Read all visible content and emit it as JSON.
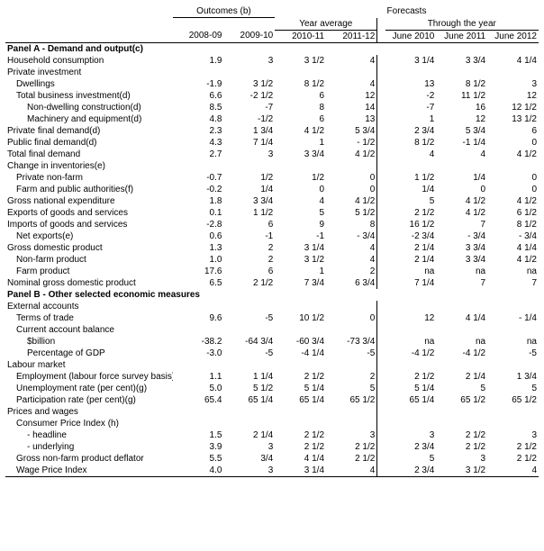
{
  "headers": {
    "outcomes": "Outcomes (b)",
    "forecasts": "Forecasts",
    "year_average": "Year average",
    "through_year": "Through the year",
    "c1": "2008-09",
    "c2": "2009-10",
    "c3": "2010-11",
    "c4": "2011-12",
    "c5": "June 2010",
    "c6": "June 2011",
    "c7": "June 2012"
  },
  "panelA_title": "Panel A - Demand and output(c)",
  "panelB_title": "Panel B - Other selected economic measures",
  "rows": {
    "household_consumption": {
      "l": "Household consumption",
      "v": [
        "1.9",
        "3",
        "3 1/2",
        "4",
        "3 1/4",
        "3 3/4",
        "4 1/4"
      ]
    },
    "private_investment": {
      "l": "Private investment"
    },
    "dwellings": {
      "l": "Dwellings",
      "v": [
        "-1.9",
        "3 1/2",
        "8 1/2",
        "4",
        "13",
        "8 1/2",
        "3"
      ]
    },
    "total_business_investment": {
      "l": "Total business investment(d)",
      "v": [
        "6.6",
        "-2 1/2",
        "6",
        "12",
        "-2",
        "11 1/2",
        "12"
      ]
    },
    "non_dwelling_construction": {
      "l": "Non-dwelling construction(d)",
      "v": [
        "8.5",
        "-7",
        "8",
        "14",
        "-7",
        "16",
        "12 1/2"
      ]
    },
    "machinery_equipment": {
      "l": "Machinery and equipment(d)",
      "v": [
        "4.8",
        "-1/2",
        "6",
        "13",
        "1",
        "12",
        "13 1/2"
      ]
    },
    "private_final_demand": {
      "l": "Private final demand(d)",
      "v": [
        "2.3",
        "1 3/4",
        "4 1/2",
        "5 3/4",
        "2 3/4",
        "5 3/4",
        "6"
      ]
    },
    "public_final_demand": {
      "l": "Public final demand(d)",
      "v": [
        "4.3",
        "7 1/4",
        "1",
        "- 1/2",
        "8 1/2",
        "-1 1/4",
        "0"
      ]
    },
    "total_final_demand": {
      "l": "Total final demand",
      "v": [
        "2.7",
        "3",
        "3 3/4",
        "4 1/2",
        "4",
        "4",
        "4 1/2"
      ]
    },
    "change_inventories": {
      "l": "Change in inventories(e)"
    },
    "private_non_farm": {
      "l": "Private non-farm",
      "v": [
        "-0.7",
        "1/2",
        "1/2",
        "0",
        "1 1/2",
        "1/4",
        "0"
      ]
    },
    "farm_public_auth": {
      "l": "Farm and public authorities(f)",
      "v": [
        "-0.2",
        "1/4",
        "0",
        "0",
        "1/4",
        "0",
        "0"
      ]
    },
    "gross_national_expenditure": {
      "l": "Gross national expenditure",
      "v": [
        "1.8",
        "3 3/4",
        "4",
        "4 1/2",
        "5",
        "4 1/2",
        "4 1/2"
      ]
    },
    "exports_gs": {
      "l": "Exports of goods and services",
      "v": [
        "0.1",
        "1 1/2",
        "5",
        "5 1/2",
        "2 1/2",
        "4 1/2",
        "6 1/2"
      ]
    },
    "imports_gs": {
      "l": "Imports of goods and services",
      "v": [
        "-2.8",
        "6",
        "9",
        "8",
        "16 1/2",
        "7",
        "8 1/2"
      ]
    },
    "net_exports": {
      "l": "Net exports(e)",
      "v": [
        "0.6",
        "-1",
        "-1",
        "- 3/4",
        "-2 3/4",
        "- 3/4",
        "- 3/4"
      ]
    },
    "gdp": {
      "l": "Gross domestic product",
      "v": [
        "1.3",
        "2",
        "3 1/4",
        "4",
        "2 1/4",
        "3 3/4",
        "4 1/4"
      ]
    },
    "non_farm_product": {
      "l": "Non-farm product",
      "v": [
        "1.0",
        "2",
        "3 1/2",
        "4",
        "2 1/4",
        "3 3/4",
        "4 1/2"
      ]
    },
    "farm_product": {
      "l": "Farm product",
      "v": [
        "17.6",
        "6",
        "1",
        "2",
        "na",
        "na",
        "na"
      ]
    },
    "nominal_gdp": {
      "l": "Nominal gross domestic product",
      "v": [
        "6.5",
        "2 1/2",
        "7 3/4",
        "6 3/4",
        "7 1/4",
        "7",
        "7"
      ]
    },
    "external_accounts": {
      "l": "External accounts"
    },
    "terms_of_trade": {
      "l": "Terms of trade",
      "v": [
        "9.6",
        "-5",
        "10 1/2",
        "0",
        "12",
        "4 1/4",
        "- 1/4"
      ]
    },
    "current_account_balance": {
      "l": "Current account balance"
    },
    "billion": {
      "l": "$billion",
      "v": [
        "-38.2",
        "-64 3/4",
        "-60 3/4",
        "-73 3/4",
        "na",
        "na",
        "na"
      ]
    },
    "pct_gdp": {
      "l": "Percentage of GDP",
      "v": [
        "-3.0",
        "-5",
        "-4 1/4",
        "-5",
        "-4 1/2",
        "-4 1/2",
        "-5"
      ]
    },
    "labour_market": {
      "l": "Labour market"
    },
    "employment": {
      "l": "Employment (labour force survey basis)",
      "v": [
        "1.1",
        "1 1/4",
        "2 1/2",
        "2",
        "2 1/2",
        "2 1/4",
        "1 3/4"
      ]
    },
    "unemployment_rate": {
      "l": "Unemployment rate (per cent)(g)",
      "v": [
        "5.0",
        "5 1/2",
        "5 1/4",
        "5",
        "5 1/4",
        "5",
        "5"
      ]
    },
    "participation_rate": {
      "l": "Participation rate (per cent)(g)",
      "v": [
        "65.4",
        "65 1/4",
        "65 1/4",
        "65 1/2",
        "65 1/4",
        "65 1/2",
        "65 1/2"
      ]
    },
    "prices_wages": {
      "l": "Prices and wages"
    },
    "cpi": {
      "l": "Consumer Price Index (h)"
    },
    "headline": {
      "l": "- headline",
      "v": [
        "1.5",
        "2 1/4",
        "2 1/2",
        "3",
        "3",
        "2 1/2",
        "3"
      ]
    },
    "underlying": {
      "l": "- underlying",
      "v": [
        "3.9",
        "3",
        "2 1/2",
        "2 1/2",
        "2 3/4",
        "2 1/2",
        "2 1/2"
      ]
    },
    "gnfp_deflator": {
      "l": "Gross non-farm product deflator",
      "v": [
        "5.5",
        "3/4",
        "4 1/4",
        "2 1/2",
        "5",
        "3",
        "2 1/2"
      ]
    },
    "wpi": {
      "l": "Wage Price Index",
      "v": [
        "4.0",
        "3",
        "3 1/4",
        "4",
        "2 3/4",
        "3 1/2",
        "4"
      ]
    }
  }
}
